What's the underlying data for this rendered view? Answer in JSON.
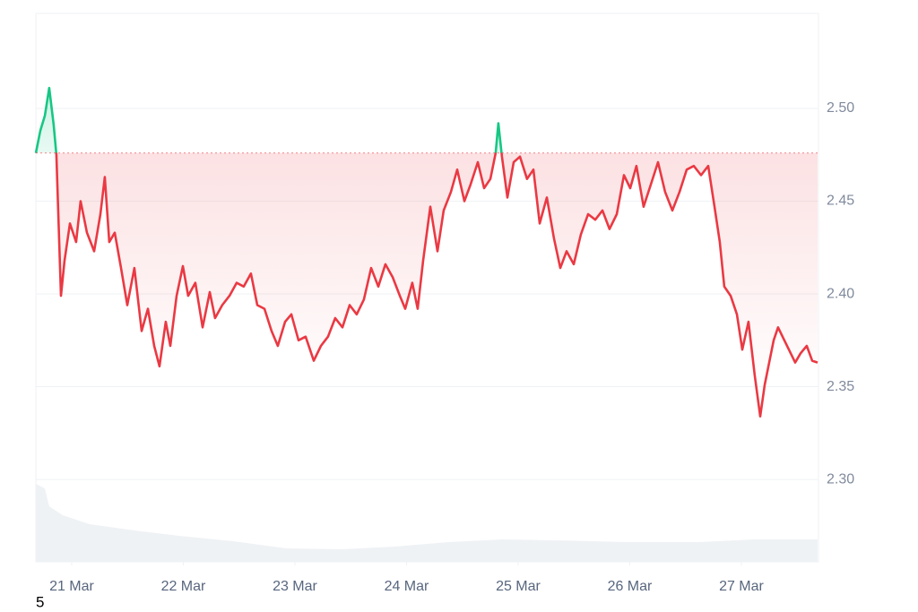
{
  "chart_data": {
    "type": "line",
    "color": "#ea3943",
    "up_color": "#16c784",
    "baseline": 2.476,
    "x": [
      20.679,
      20.719,
      20.759,
      20.799,
      20.839,
      20.863,
      20.904,
      20.936,
      20.984,
      21.04,
      21.08,
      21.137,
      21.201,
      21.257,
      21.297,
      21.337,
      21.386,
      21.442,
      21.498,
      21.562,
      21.627,
      21.683,
      21.739,
      21.787,
      21.843,
      21.884,
      21.94,
      21.996,
      22.044,
      22.108,
      22.173,
      22.237,
      22.285,
      22.349,
      22.414,
      22.478,
      22.542,
      22.606,
      22.663,
      22.727,
      22.791,
      22.847,
      22.912,
      22.968,
      23.032,
      23.096,
      23.169,
      23.233,
      23.297,
      23.361,
      23.426,
      23.49,
      23.554,
      23.618,
      23.683,
      23.747,
      23.811,
      23.876,
      23.94,
      23.988,
      24.052,
      24.1,
      24.149,
      24.213,
      24.277,
      24.333,
      24.398,
      24.454,
      24.518,
      24.574,
      24.639,
      24.695,
      24.751,
      24.799,
      24.823,
      24.855,
      24.904,
      24.96,
      25.016,
      25.08,
      25.137,
      25.193,
      25.257,
      25.321,
      25.378,
      25.434,
      25.498,
      25.562,
      25.627,
      25.691,
      25.755,
      25.819,
      25.884,
      25.948,
      26.004,
      26.06,
      26.124,
      26.189,
      26.253,
      26.317,
      26.382,
      26.446,
      26.51,
      26.574,
      26.639,
      26.703,
      26.759,
      26.807,
      26.847,
      26.904,
      26.96,
      27.008,
      27.064,
      27.12,
      27.169,
      27.209,
      27.249,
      27.289,
      27.329,
      27.369,
      27.426,
      27.482,
      27.53,
      27.586,
      27.635,
      27.683
    ],
    "values": [
      2.476,
      2.488,
      2.496,
      2.511,
      2.491,
      2.475,
      2.399,
      2.418,
      2.438,
      2.428,
      2.45,
      2.433,
      2.423,
      2.443,
      2.463,
      2.428,
      2.433,
      2.414,
      2.394,
      2.414,
      2.38,
      2.392,
      2.372,
      2.361,
      2.385,
      2.372,
      2.399,
      2.415,
      2.399,
      2.406,
      2.382,
      2.401,
      2.387,
      2.394,
      2.399,
      2.406,
      2.404,
      2.411,
      2.394,
      2.392,
      2.38,
      2.372,
      2.385,
      2.389,
      2.375,
      2.377,
      2.364,
      2.372,
      2.377,
      2.387,
      2.382,
      2.394,
      2.389,
      2.397,
      2.414,
      2.404,
      2.416,
      2.409,
      2.399,
      2.392,
      2.406,
      2.392,
      2.418,
      2.447,
      2.423,
      2.445,
      2.455,
      2.467,
      2.45,
      2.459,
      2.471,
      2.457,
      2.462,
      2.476,
      2.492,
      2.474,
      2.452,
      2.471,
      2.474,
      2.462,
      2.467,
      2.438,
      2.452,
      2.43,
      2.414,
      2.423,
      2.416,
      2.432,
      2.443,
      2.44,
      2.445,
      2.435,
      2.443,
      2.464,
      2.457,
      2.469,
      2.447,
      2.459,
      2.471,
      2.455,
      2.445,
      2.455,
      2.467,
      2.469,
      2.464,
      2.469,
      2.447,
      2.428,
      2.404,
      2.399,
      2.389,
      2.37,
      2.385,
      2.356,
      2.334,
      2.351,
      2.363,
      2.375,
      2.382,
      2.377,
      2.37,
      2.363,
      2.368,
      2.372,
      2.364,
      2.363
    ],
    "xlim": [
      20.679,
      27.691
    ],
    "xticks": [
      {
        "value": 21,
        "label": "21 Mar"
      },
      {
        "value": 22,
        "label": "22 Mar"
      },
      {
        "value": 23,
        "label": "23 Mar"
      },
      {
        "value": 24,
        "label": "24 Mar"
      },
      {
        "value": 25,
        "label": "25 Mar"
      },
      {
        "value": 26,
        "label": "26 Mar"
      },
      {
        "value": 27,
        "label": "27 Mar"
      }
    ],
    "ylim": [
      2.2556,
      2.5512
    ],
    "yticks": [
      {
        "value": 2.3,
        "label": "2.30"
      },
      {
        "value": 2.35,
        "label": "2.35"
      },
      {
        "value": 2.4,
        "label": "2.40"
      },
      {
        "value": 2.45,
        "label": "2.45"
      },
      {
        "value": 2.5,
        "label": "2.50"
      }
    ],
    "grid": true,
    "volume": {
      "color": "#eff2f5",
      "ylim": [
        0,
        100
      ],
      "x": [
        20.679,
        20.759,
        20.799,
        20.92,
        21.161,
        21.562,
        21.964,
        22.446,
        22.928,
        23.41,
        23.892,
        24.373,
        24.855,
        25.337,
        25.98,
        26.622,
        27.104,
        27.683
      ],
      "values": [
        87,
        82,
        62,
        52,
        42,
        35,
        29,
        23,
        15,
        14,
        17,
        22,
        25,
        24,
        22,
        22,
        25,
        25
      ]
    },
    "footnote": "5"
  }
}
